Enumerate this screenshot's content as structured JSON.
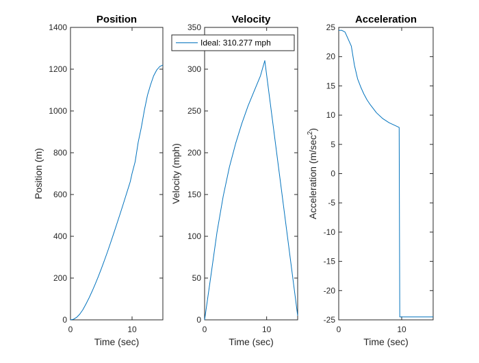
{
  "figure": {
    "background": "#ffffff",
    "line_color": "#0072bd",
    "axis_color": "#262626"
  },
  "chart_data": [
    {
      "type": "line",
      "title": "Position",
      "xlabel": "Time (sec)",
      "ylabel": "Position (m)",
      "xlim": [
        0,
        15
      ],
      "ylim": [
        0,
        1400
      ],
      "xticks": [
        0,
        10
      ],
      "yticks": [
        0,
        200,
        400,
        600,
        800,
        1000,
        1200,
        1400
      ],
      "grid": false,
      "series": [
        {
          "x": [
            0,
            0.5,
            1,
            1.5,
            2,
            2.5,
            3,
            3.5,
            4,
            4.5,
            5,
            5.5,
            6,
            6.5,
            7,
            7.5,
            8,
            8.5,
            9,
            9.5,
            9.7,
            10,
            10.5,
            11,
            11.5,
            12,
            12.5,
            13,
            13.5,
            14,
            14.5,
            15
          ],
          "y": [
            0,
            3,
            12,
            27,
            48,
            75,
            104,
            136,
            170,
            206,
            244,
            284,
            325,
            368,
            412,
            457,
            502,
            548,
            595,
            642,
            661,
            701,
            757,
            851,
            921,
            1004,
            1075,
            1125,
            1168,
            1196,
            1213,
            1220
          ]
        }
      ]
    },
    {
      "type": "line",
      "title": "Velocity",
      "xlabel": "Time (sec)",
      "ylabel": "Velocity (mph)",
      "xlim": [
        0,
        15
      ],
      "ylim": [
        0,
        350
      ],
      "xticks": [
        0,
        10
      ],
      "yticks": [
        0,
        50,
        100,
        150,
        200,
        250,
        300,
        350
      ],
      "grid": false,
      "legend": {
        "position": "top",
        "entries": [
          "Ideal: 310.277 mph"
        ]
      },
      "series": [
        {
          "name": "Ideal: 310.277 mph",
          "x": [
            0,
            1,
            2,
            3,
            4,
            5,
            6,
            7,
            8,
            9,
            9.7,
            15
          ],
          "y": [
            0,
            52,
            105,
            148,
            183,
            211,
            235,
            256,
            274,
            292,
            310.277,
            5
          ]
        }
      ]
    },
    {
      "type": "line",
      "title": "Acceleration",
      "xlabel": "Time (sec)",
      "ylabel": "Acceleration (m/sec",
      "ylabel_sup": "2",
      "ylabel_end": ")",
      "xlim": [
        0,
        15
      ],
      "ylim": [
        -25,
        25
      ],
      "xticks": [
        0,
        10
      ],
      "yticks": [
        -25,
        -20,
        -15,
        -10,
        -5,
        0,
        5,
        10,
        15,
        20,
        25
      ],
      "grid": false,
      "series": [
        {
          "x": [
            0,
            0.5,
            1,
            1.5,
            2,
            2.5,
            3,
            3.5,
            4,
            4.5,
            5,
            6,
            7,
            8,
            9,
            9.6,
            9.6,
            9.7,
            15
          ],
          "y": [
            24.5,
            24.5,
            24.2,
            23,
            21.8,
            18.5,
            16.2,
            14.8,
            13.6,
            12.6,
            11.8,
            10.4,
            9.4,
            8.7,
            8.2,
            7.9,
            7.9,
            -24.5,
            -24.5
          ]
        }
      ]
    }
  ]
}
